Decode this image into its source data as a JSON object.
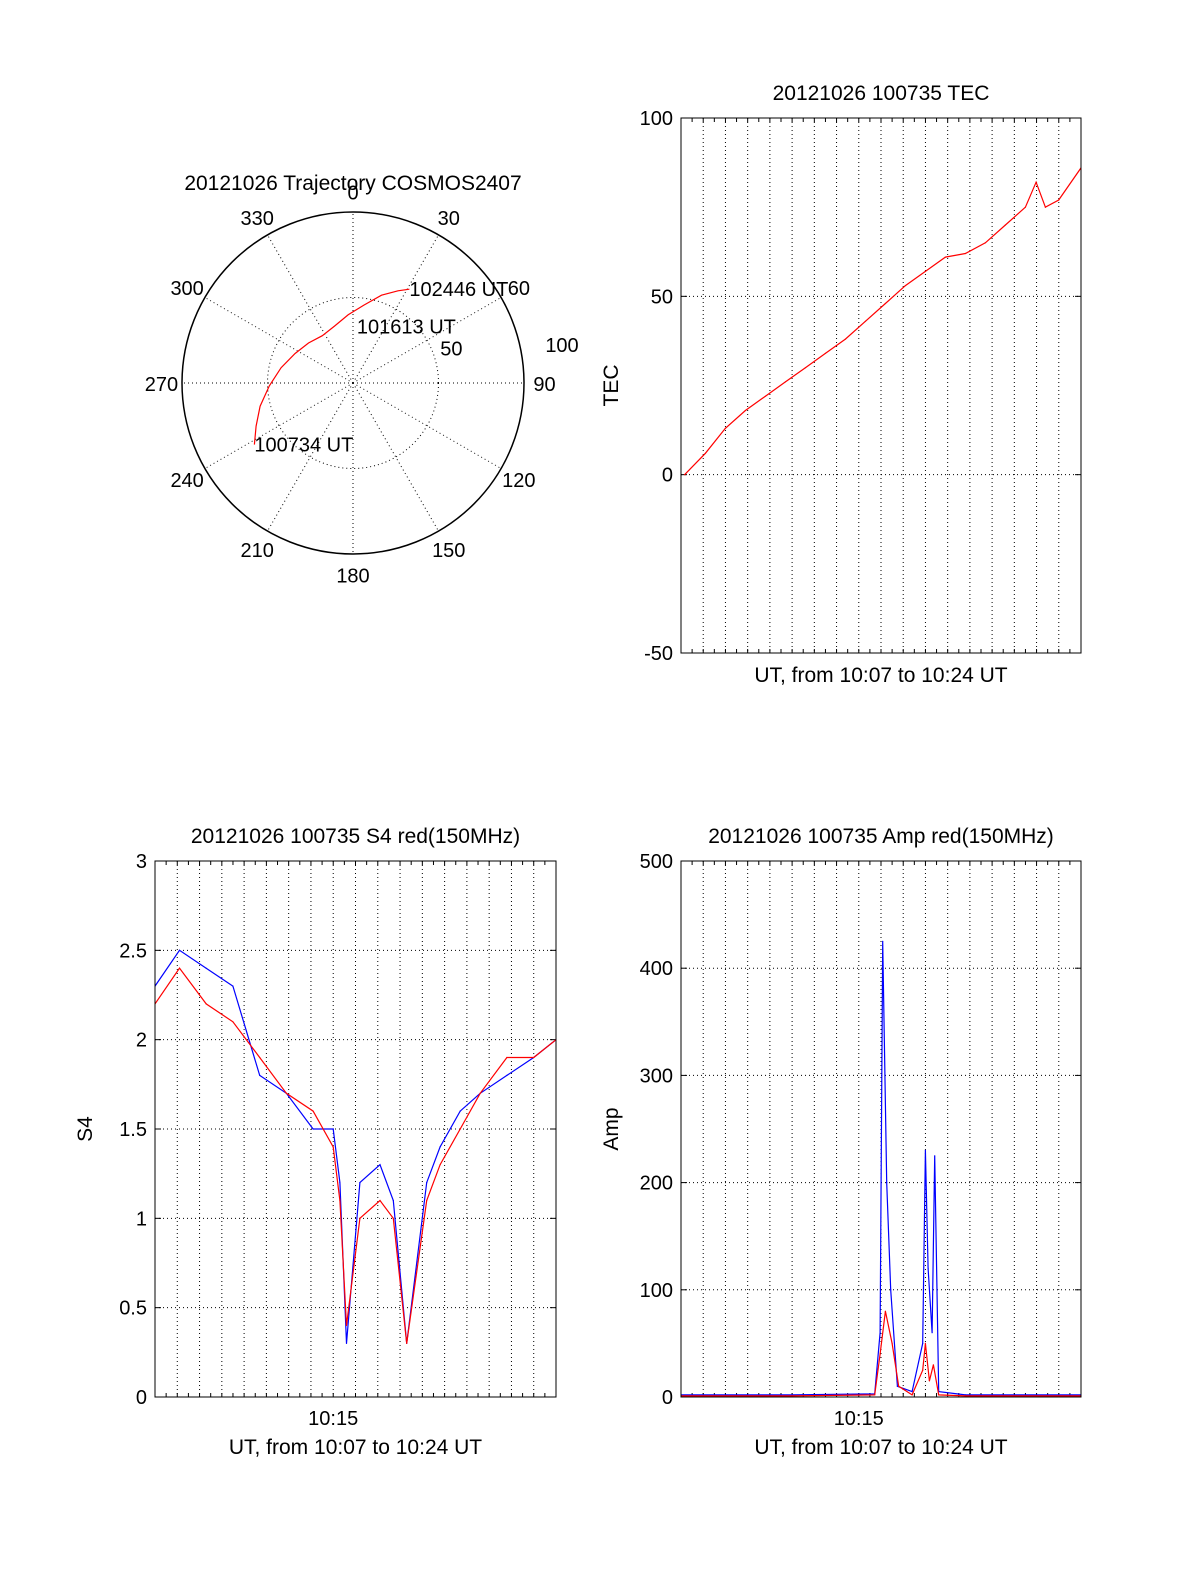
{
  "chart_data": [
    {
      "id": "polar",
      "type": "polar",
      "title": "20121026 Trajectory COSMOS2407",
      "azimuth_labels": [
        "0",
        "30",
        "60",
        "90",
        "120",
        "150",
        "180",
        "210",
        "240",
        "270",
        "300",
        "330"
      ],
      "radial_labels": [
        "50",
        "100"
      ],
      "radial_ticks": [
        50,
        100
      ],
      "grid": true,
      "series": [
        {
          "color": "#ff0000",
          "points_az_r": [
            [
              238,
              68
            ],
            [
              246,
              62
            ],
            [
              256,
              56
            ],
            [
              268,
              49
            ],
            [
              282,
              43
            ],
            [
              297,
              38
            ],
            [
              312,
              35
            ],
            [
              327,
              33
            ],
            [
              342,
              35
            ],
            [
              356,
              40
            ],
            [
              8,
              46
            ],
            [
              18,
              54
            ],
            [
              26,
              60
            ],
            [
              31,
              64
            ]
          ]
        }
      ],
      "annotations": [
        {
          "text": "100734 UT",
          "az": 238,
          "r": 68
        },
        {
          "text": "101613 UT",
          "az": 4,
          "r": 33
        },
        {
          "text": "102446 UT",
          "az": 31,
          "r": 64
        }
      ]
    },
    {
      "id": "tec",
      "type": "line",
      "title": "20121026 100735 TEC",
      "xlabel": "UT, from 10:07 to 10:24 UT",
      "ylabel": "TEC",
      "xlim": [
        10.1167,
        10.4167
      ],
      "ylim": [
        -50,
        100
      ],
      "yticks": [
        -50,
        0,
        50,
        100
      ],
      "grid": true,
      "series": [
        {
          "color": "#ff0000",
          "x": [
            10.1194,
            10.135,
            10.15,
            10.165,
            10.18,
            10.195,
            10.21,
            10.225,
            10.24,
            10.255,
            10.27,
            10.285,
            10.3,
            10.315,
            10.33,
            10.345,
            10.36,
            10.375,
            10.383,
            10.39,
            10.4,
            10.4167
          ],
          "y": [
            0,
            6,
            13,
            18,
            22,
            26,
            30,
            34,
            38,
            43,
            48,
            53,
            57,
            61,
            62,
            65,
            70,
            75,
            82,
            75,
            77,
            86
          ]
        }
      ]
    },
    {
      "id": "s4",
      "type": "line",
      "title": "20121026 100735 S4 red(150MHz)",
      "xlabel": "UT, from 10:07 to 10:24 UT",
      "ylabel": "S4",
      "xlim": [
        10.1167,
        10.4167
      ],
      "ylim": [
        0,
        3
      ],
      "yticks": [
        0,
        0.5,
        1,
        1.5,
        2,
        2.5,
        3
      ],
      "ytick_labels": [
        "0",
        "0.5",
        "1",
        "1.5",
        "2",
        "2.5",
        "3"
      ],
      "xticks": [
        10.25
      ],
      "xtick_labels": [
        "10:15"
      ],
      "grid": true,
      "series": [
        {
          "color": "#0000ff",
          "x": [
            10.1167,
            10.135,
            10.155,
            10.175,
            10.195,
            10.215,
            10.235,
            10.25,
            10.255,
            10.26,
            10.27,
            10.285,
            10.295,
            10.305,
            10.32,
            10.33,
            10.345,
            10.36,
            10.38,
            10.4,
            10.4167
          ],
          "y": [
            2.3,
            2.5,
            2.4,
            2.3,
            1.8,
            1.7,
            1.5,
            1.5,
            1.2,
            0.3,
            1.2,
            1.3,
            1.1,
            0.3,
            1.2,
            1.4,
            1.6,
            1.7,
            1.8,
            1.9,
            2.0
          ]
        },
        {
          "color": "#ff0000",
          "x": [
            10.1167,
            10.135,
            10.155,
            10.175,
            10.195,
            10.215,
            10.235,
            10.25,
            10.255,
            10.26,
            10.27,
            10.285,
            10.295,
            10.305,
            10.32,
            10.33,
            10.345,
            10.36,
            10.38,
            10.4,
            10.4167
          ],
          "y": [
            2.2,
            2.4,
            2.2,
            2.1,
            1.9,
            1.7,
            1.6,
            1.4,
            1.1,
            0.4,
            1.0,
            1.1,
            1.0,
            0.3,
            1.1,
            1.3,
            1.5,
            1.7,
            1.9,
            1.9,
            2.0
          ]
        }
      ]
    },
    {
      "id": "amp",
      "type": "line",
      "title": "20121026 100735 Amp red(150MHz)",
      "xlabel": "UT, from 10:07 to 10:24 UT",
      "ylabel": "Amp",
      "xlim": [
        10.1167,
        10.4167
      ],
      "ylim": [
        0,
        500
      ],
      "yticks": [
        0,
        100,
        200,
        300,
        400,
        500
      ],
      "xticks": [
        10.25
      ],
      "xtick_labels": [
        "10:15"
      ],
      "grid": true,
      "series": [
        {
          "color": "#0000ff",
          "x": [
            10.1167,
            10.2,
            10.262,
            10.266,
            10.268,
            10.271,
            10.274,
            10.279,
            10.29,
            10.298,
            10.3,
            10.302,
            10.305,
            10.307,
            10.31,
            10.33,
            10.4167
          ],
          "y": [
            2,
            2,
            3,
            60,
            425,
            200,
            100,
            10,
            5,
            50,
            230,
            120,
            60,
            225,
            5,
            2,
            2
          ]
        },
        {
          "color": "#ff0000",
          "x": [
            10.1167,
            10.2,
            10.262,
            10.266,
            10.27,
            10.275,
            10.28,
            10.29,
            10.298,
            10.3,
            10.303,
            10.306,
            10.31,
            10.33,
            10.4167
          ],
          "y": [
            1,
            1,
            2,
            40,
            80,
            50,
            10,
            2,
            25,
            50,
            15,
            30,
            2,
            1,
            1
          ]
        }
      ]
    }
  ]
}
